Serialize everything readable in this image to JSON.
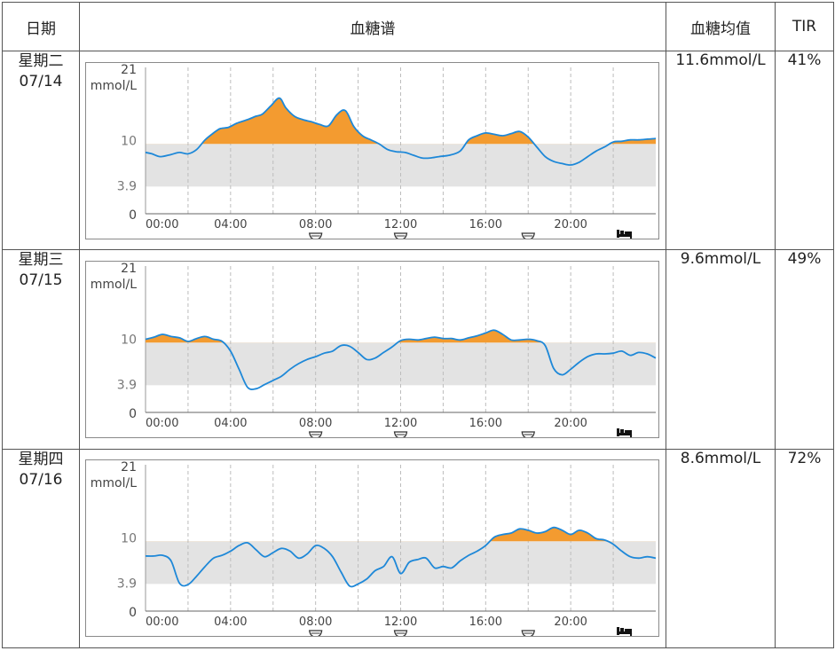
{
  "table": {
    "headers": {
      "date": "日期",
      "chart": "血糖谱",
      "mean": "血糖均值",
      "tir": "TIR"
    }
  },
  "chart_data": [
    {
      "type": "area",
      "day_label": "星期二",
      "date": "07/14",
      "mean": "11.6mmol/L",
      "tir": "41%",
      "y_max_label": "21",
      "y_unit": "mmol/L",
      "y_ticks": [
        "10",
        "3.9",
        "0"
      ],
      "x_ticks": [
        "00:00",
        "04:00",
        "08:00",
        "12:00",
        "16:00",
        "20:00"
      ],
      "target_range": [
        3.9,
        10
      ],
      "ylim": [
        0,
        21
      ],
      "xlim": [
        0,
        24
      ],
      "meal_icons_at": [
        8,
        12,
        18
      ],
      "sleep_icon_at": 22.5,
      "x": [
        0,
        0.3,
        0.7,
        1.2,
        1.6,
        2.0,
        2.4,
        2.8,
        3.2,
        3.5,
        3.9,
        4.3,
        4.8,
        5.2,
        5.5,
        5.9,
        6.3,
        6.6,
        7.0,
        7.4,
        7.8,
        8.2,
        8.6,
        9.0,
        9.4,
        9.8,
        10.2,
        10.6,
        11.0,
        11.4,
        11.8,
        12.2,
        12.6,
        13.0,
        13.4,
        13.8,
        14.3,
        14.8,
        15.2,
        15.6,
        16.0,
        16.4,
        16.8,
        17.2,
        17.6,
        18.0,
        18.4,
        18.8,
        19.2,
        19.6,
        20.0,
        20.4,
        20.8,
        21.2,
        21.6,
        22.0,
        22.4,
        22.8,
        23.2,
        23.6,
        24.0
      ],
      "y": [
        8.8,
        8.6,
        8.2,
        8.5,
        8.8,
        8.6,
        9.2,
        10.6,
        11.6,
        12.2,
        12.4,
        13.0,
        13.5,
        14.0,
        14.3,
        15.5,
        16.6,
        15.2,
        14.0,
        13.5,
        13.2,
        12.8,
        12.6,
        14.2,
        14.8,
        12.5,
        11.2,
        10.6,
        10.0,
        9.2,
        8.9,
        8.8,
        8.4,
        8.0,
        8.0,
        8.2,
        8.4,
        9.0,
        10.6,
        11.2,
        11.6,
        11.4,
        11.2,
        11.5,
        11.8,
        11.0,
        9.6,
        8.2,
        7.5,
        7.2,
        7.0,
        7.4,
        8.2,
        9.0,
        9.6,
        10.3,
        10.4,
        10.6,
        10.6,
        10.7,
        10.8
      ]
    },
    {
      "type": "area",
      "day_label": "星期三",
      "date": "07/15",
      "mean": "9.6mmol/L",
      "tir": "49%",
      "y_max_label": "21",
      "y_unit": "mmol/L",
      "y_ticks": [
        "10",
        "3.9",
        "0"
      ],
      "x_ticks": [
        "00:00",
        "04:00",
        "08:00",
        "12:00",
        "16:00",
        "20:00"
      ],
      "target_range": [
        3.9,
        10
      ],
      "ylim": [
        0,
        21
      ],
      "xlim": [
        0,
        24
      ],
      "meal_icons_at": [
        8,
        12,
        18
      ],
      "sleep_icon_at": 22.5,
      "x": [
        0,
        0.4,
        0.8,
        1.2,
        1.6,
        2.0,
        2.4,
        2.8,
        3.2,
        3.6,
        4.0,
        4.4,
        4.8,
        5.2,
        5.6,
        6.0,
        6.4,
        6.8,
        7.2,
        7.6,
        8.0,
        8.4,
        8.8,
        9.2,
        9.6,
        10.0,
        10.4,
        10.8,
        11.2,
        11.6,
        12.0,
        12.4,
        12.8,
        13.2,
        13.6,
        14.0,
        14.4,
        14.8,
        15.2,
        15.6,
        16.0,
        16.4,
        16.8,
        17.2,
        17.6,
        18.0,
        18.4,
        18.8,
        19.2,
        19.6,
        20.0,
        20.4,
        20.8,
        21.2,
        21.6,
        22.0,
        22.4,
        22.8,
        23.2,
        23.6,
        24.0
      ],
      "y": [
        10.5,
        10.8,
        11.2,
        10.9,
        10.7,
        10.2,
        10.6,
        10.9,
        10.5,
        10.2,
        8.8,
        6.2,
        3.6,
        3.4,
        4.0,
        4.6,
        5.2,
        6.2,
        7.0,
        7.6,
        8.0,
        8.5,
        8.8,
        9.6,
        9.5,
        8.6,
        7.6,
        7.8,
        8.6,
        9.4,
        10.3,
        10.5,
        10.4,
        10.6,
        10.8,
        10.6,
        10.6,
        10.4,
        10.7,
        11.0,
        11.4,
        11.8,
        11.2,
        10.4,
        10.4,
        10.5,
        10.3,
        9.6,
        6.3,
        5.4,
        6.2,
        7.2,
        8.0,
        8.4,
        8.4,
        8.5,
        8.8,
        8.2,
        8.6,
        8.4,
        7.8
      ]
    },
    {
      "type": "area",
      "day_label": "星期四",
      "date": "07/16",
      "mean": "8.6mmol/L",
      "tir": "72%",
      "y_max_label": "21",
      "y_unit": "mmol/L",
      "y_ticks": [
        "10",
        "3.9",
        "0"
      ],
      "x_ticks": [
        "00:00",
        "04:00",
        "08:00",
        "12:00",
        "16:00",
        "20:00"
      ],
      "target_range": [
        3.9,
        10
      ],
      "ylim": [
        0,
        21
      ],
      "xlim": [
        0,
        24
      ],
      "meal_icons_at": [
        8,
        12,
        18
      ],
      "sleep_icon_at": 22.5,
      "x": [
        0,
        0.4,
        0.8,
        1.2,
        1.6,
        2.0,
        2.4,
        2.8,
        3.2,
        3.6,
        4.0,
        4.4,
        4.8,
        5.2,
        5.6,
        6.0,
        6.4,
        6.8,
        7.2,
        7.6,
        8.0,
        8.4,
        8.8,
        9.2,
        9.6,
        10.0,
        10.4,
        10.8,
        11.2,
        11.6,
        12.0,
        12.4,
        12.8,
        13.2,
        13.6,
        14.0,
        14.4,
        14.8,
        15.2,
        15.6,
        16.0,
        16.4,
        16.8,
        17.2,
        17.6,
        18.0,
        18.4,
        18.8,
        19.2,
        19.6,
        20.0,
        20.4,
        20.8,
        21.2,
        21.6,
        22.0,
        22.4,
        22.8,
        23.2,
        23.6,
        24.0
      ],
      "y": [
        7.9,
        7.9,
        8.0,
        7.2,
        4.0,
        3.8,
        5.0,
        6.4,
        7.6,
        8.0,
        8.6,
        9.4,
        9.8,
        8.8,
        7.8,
        8.4,
        9.0,
        8.6,
        7.6,
        8.2,
        9.4,
        9.0,
        7.8,
        5.6,
        3.6,
        3.9,
        4.6,
        5.8,
        6.4,
        7.8,
        5.4,
        7.0,
        7.4,
        7.6,
        6.2,
        6.4,
        6.2,
        7.2,
        8.0,
        8.6,
        9.4,
        10.6,
        11.0,
        11.2,
        11.8,
        11.6,
        11.2,
        11.4,
        12.0,
        11.6,
        11.0,
        11.6,
        11.2,
        10.4,
        10.2,
        9.6,
        8.6,
        7.8,
        7.6,
        7.8,
        7.6
      ]
    }
  ]
}
